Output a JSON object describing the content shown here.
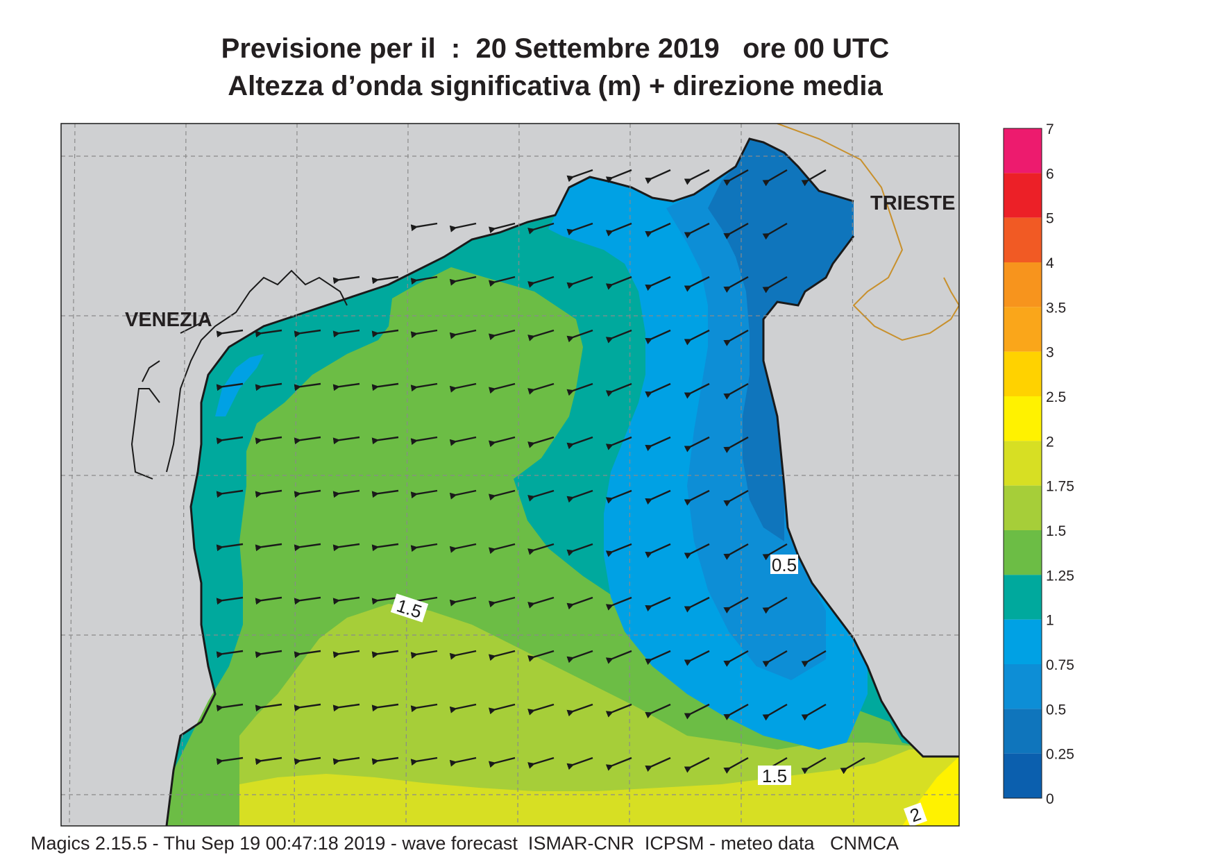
{
  "header": {
    "title_line1": "Previsione per il  :  20 Settembre 2019   ore 00 UTC",
    "title_line2": "Altezza d’onda significativa (m) + direzione media"
  },
  "places": [
    {
      "name": "VENEZIA"
    },
    {
      "name": "TRIESTE"
    }
  ],
  "contour_labels": [
    "1.5",
    "1.5",
    "0.5",
    "2"
  ],
  "colors": {
    "land": "#cfd0d2",
    "grid": "#8a8a8a",
    "border": "#c8902c",
    "coast": "#1a1a1a",
    "arrow": "#1a1a1a"
  },
  "legend": {
    "levels": [
      {
        "label": "7",
        "color": null
      },
      {
        "label": "6",
        "color": "#ed1b6e"
      },
      {
        "label": "5",
        "color": "#ec2027"
      },
      {
        "label": "4",
        "color": "#f15a24"
      },
      {
        "label": "3.5",
        "color": "#f7941d"
      },
      {
        "label": "3",
        "color": "#faa61a"
      },
      {
        "label": "2.5",
        "color": "#ffd200"
      },
      {
        "label": "2",
        "color": "#fff200"
      },
      {
        "label": "1.75",
        "color": "#d7df23"
      },
      {
        "label": "1.5",
        "color": "#a6ce39"
      },
      {
        "label": "1.25",
        "color": "#6cbd45"
      },
      {
        "label": "1",
        "color": "#00a99d"
      },
      {
        "label": "0.75",
        "color": "#00a1e4"
      },
      {
        "label": "0.5",
        "color": "#0d8ed6"
      },
      {
        "label": "0.25",
        "color": "#0f75bc"
      },
      {
        "label": "0",
        "color": "#0b5fae"
      }
    ]
  },
  "mean_direction": "ENE (arrows pointing WSW)",
  "footer": "Magics 2.15.5 - Thu Sep 19 00:47:18 2019 - wave forecast  ISMAR-CNR  ICPSM - meteo data   CNMCA"
}
